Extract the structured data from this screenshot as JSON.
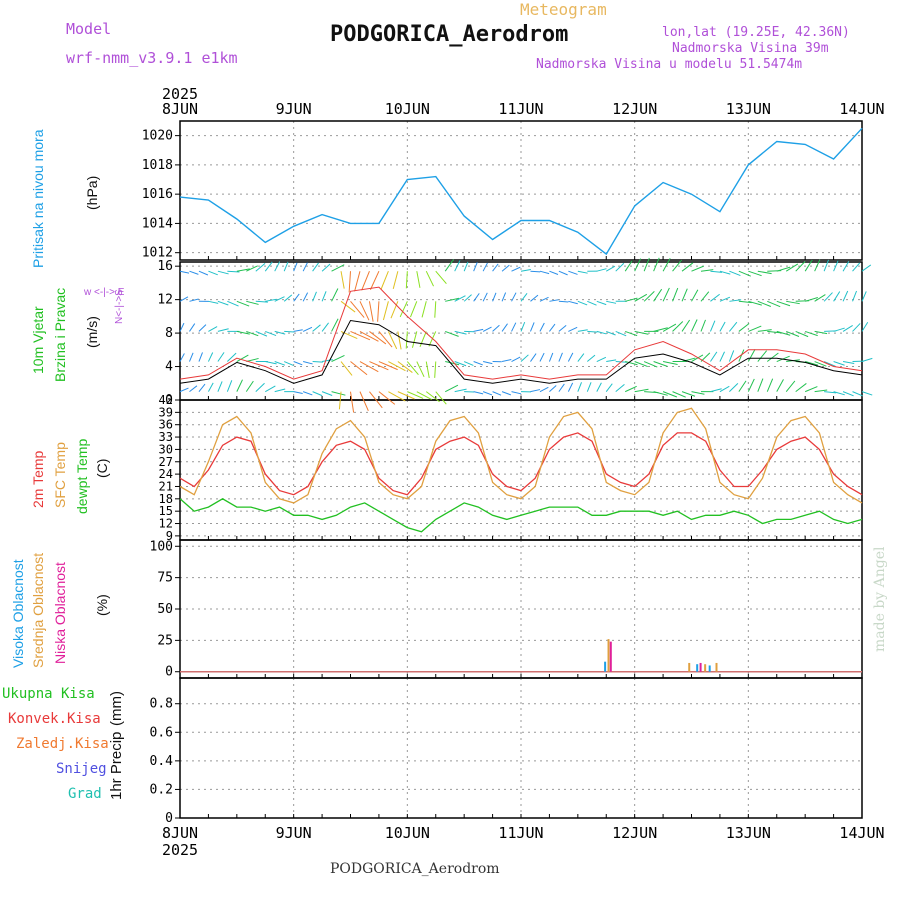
{
  "header": {
    "model_label": "Model",
    "model_name": "wrf-nmm_v3.9.1 e1km",
    "meteogram": "Meteogram",
    "station": "PODGORICA_Aerodrom",
    "lonlat": "lon,lat (19.25E, 42.36N)",
    "altitude": "Nadmorska Visina 39m",
    "model_altitude": "Nadmorska Visina u modelu 51.5474m",
    "footer_station": "PODGORICA_Aerodrom",
    "made_by": "made by Angel"
  },
  "colors": {
    "pressure": "#1ea0e6",
    "temp2m": "#e83a3a",
    "sfc": "#e0a040",
    "dewpt": "#22c022",
    "high_cloud": "#1ea0e6",
    "mid_cloud": "#e0a040",
    "low_cloud": "#e0209a",
    "model_label": "#b050d8",
    "meteogram": "#e8b860",
    "wind_speed": "#000000",
    "gust": "#e83a3a"
  },
  "chart_data": [
    {
      "type": "line",
      "name": "pressure",
      "ylabel_left": "Pritisak na nivou mora",
      "ylabel_unit": "(hPa)",
      "ylim": [
        1011.5,
        1021
      ],
      "yticks": [
        1012,
        1014,
        1016,
        1018,
        1020
      ],
      "x_days": [
        "8JUN",
        "9JUN",
        "10JUN",
        "11JUN",
        "12JUN",
        "13JUN",
        "14JUN"
      ],
      "x_year": "2025",
      "x": [
        0,
        0.25,
        0.5,
        0.75,
        1,
        1.25,
        1.5,
        1.75,
        2,
        2.25,
        2.5,
        2.75,
        3,
        3.25,
        3.5,
        3.75,
        4,
        4.25,
        4.5,
        4.75,
        5,
        5.25,
        5.5,
        5.75,
        6
      ],
      "values": [
        1015.8,
        1015.6,
        1014.3,
        1012.7,
        1013.8,
        1014.6,
        1014.0,
        1014.0,
        1017.0,
        1017.2,
        1014.5,
        1012.9,
        1014.2,
        1014.2,
        1013.4,
        1011.9,
        1015.2,
        1016.8,
        1016.0,
        1014.8,
        1018.0,
        1019.6,
        1019.4,
        1018.4,
        1020.5
      ],
      "grid": true
    },
    {
      "type": "line",
      "name": "wind",
      "ylabel_left_1": "10m Vjetar",
      "ylabel_left_2": "Brzina i Pravac",
      "ylabel_unit": "(m/s)",
      "ylim": [
        0,
        16.5
      ],
      "yticks": [
        0,
        4,
        8,
        12,
        16
      ],
      "compass": "w <-|-> E",
      "compass_ns": "N<-|->S",
      "x": [
        0,
        0.25,
        0.5,
        0.75,
        1,
        1.25,
        1.5,
        1.75,
        2,
        2.25,
        2.5,
        2.75,
        3,
        3.25,
        3.5,
        3.75,
        4,
        4.25,
        4.5,
        4.75,
        5,
        5.25,
        5.5,
        5.75,
        6
      ],
      "speed": [
        2.0,
        2.5,
        4.5,
        3.5,
        2.0,
        3.0,
        9.5,
        9.0,
        7.0,
        6.5,
        2.5,
        2.0,
        2.5,
        2.0,
        2.5,
        2.5,
        5.0,
        5.5,
        4.5,
        3.0,
        5.0,
        5.0,
        4.5,
        3.5,
        3.0
      ],
      "gust": [
        2.5,
        3.0,
        5.0,
        4.0,
        2.5,
        3.5,
        13.0,
        13.5,
        10.0,
        7.0,
        3.0,
        2.5,
        3.0,
        2.5,
        3.0,
        3.0,
        6.0,
        7.0,
        5.5,
        3.5,
        6.0,
        6.0,
        5.5,
        4.0,
        3.5
      ],
      "grid": true
    },
    {
      "type": "line",
      "name": "temperature",
      "ylabel_left_1": "2m Temp",
      "ylabel_left_2": "SFC Temp",
      "ylabel_left_3": "dewpt Temp",
      "ylabel_unit": "(C)",
      "ylim": [
        8,
        42
      ],
      "yticks": [
        9,
        12,
        15,
        18,
        21,
        24,
        27,
        30,
        33,
        36,
        39,
        42
      ],
      "x": [
        0,
        0.125,
        0.25,
        0.375,
        0.5,
        0.625,
        0.75,
        0.875,
        1,
        1.125,
        1.25,
        1.375,
        1.5,
        1.625,
        1.75,
        1.875,
        2,
        2.125,
        2.25,
        2.375,
        2.5,
        2.625,
        2.75,
        2.875,
        3,
        3.125,
        3.25,
        3.375,
        3.5,
        3.625,
        3.75,
        3.875,
        4,
        4.125,
        4.25,
        4.375,
        4.5,
        4.625,
        4.75,
        4.875,
        5,
        5.125,
        5.25,
        5.375,
        5.5,
        5.625,
        5.75,
        5.875,
        6
      ],
      "series": [
        {
          "name": "2m Temp",
          "values": [
            23,
            21,
            25,
            31,
            33,
            32,
            24,
            20,
            19,
            21,
            27,
            31,
            32,
            30,
            23,
            20,
            19,
            23,
            30,
            32,
            33,
            31,
            24,
            21,
            20,
            23,
            30,
            33,
            34,
            32,
            24,
            22,
            21,
            24,
            31,
            34,
            34,
            32,
            25,
            21,
            21,
            25,
            30,
            32,
            33,
            30,
            24,
            21,
            19
          ]
        },
        {
          "name": "SFC Temp",
          "values": [
            21,
            19,
            27,
            36,
            38,
            34,
            22,
            18,
            17,
            19,
            29,
            35,
            37,
            33,
            22,
            19,
            18,
            21,
            32,
            37,
            38,
            34,
            22,
            19,
            18,
            21,
            33,
            38,
            39,
            35,
            22,
            20,
            19,
            22,
            34,
            39,
            40,
            35,
            22,
            19,
            18,
            23,
            33,
            37,
            38,
            34,
            22,
            19,
            17
          ]
        },
        {
          "name": "dewpt Temp",
          "values": [
            18,
            15,
            16,
            18,
            16,
            16,
            15,
            16,
            14,
            14,
            13,
            14,
            16,
            17,
            15,
            13,
            11,
            10,
            13,
            15,
            17,
            16,
            14,
            13,
            14,
            15,
            16,
            16,
            16,
            14,
            14,
            15,
            15,
            15,
            14,
            15,
            13,
            14,
            14,
            15,
            14,
            12,
            13,
            13,
            14,
            15,
            13,
            12,
            13
          ]
        }
      ],
      "grid": true
    },
    {
      "type": "bar",
      "name": "cloud",
      "ylabel_left_1": "Visoka Oblacnost",
      "ylabel_left_2": "Srednja Oblacnost",
      "ylabel_left_3": "Niska Oblacnost",
      "ylabel_unit": "(%)",
      "ylim": [
        -5,
        105
      ],
      "yticks": [
        0,
        25,
        50,
        75,
        100
      ],
      "bars": [
        {
          "x": 3.74,
          "layer": "high",
          "value": 8
        },
        {
          "x": 3.77,
          "layer": "mid",
          "value": 26
        },
        {
          "x": 3.79,
          "layer": "low",
          "value": 24
        },
        {
          "x": 4.48,
          "layer": "mid",
          "value": 7
        },
        {
          "x": 4.55,
          "layer": "high",
          "value": 6
        },
        {
          "x": 4.58,
          "layer": "low",
          "value": 7
        },
        {
          "x": 4.62,
          "layer": "mid",
          "value": 6
        },
        {
          "x": 4.66,
          "layer": "high",
          "value": 5
        },
        {
          "x": 4.72,
          "layer": "mid",
          "value": 7
        }
      ],
      "grid": true
    },
    {
      "type": "bar",
      "name": "precip",
      "ylabel_left": "1hr Precip",
      "ylabel_unit": "(mm)",
      "ylim": [
        0,
        0.98
      ],
      "yticks": [
        0,
        0.2,
        0.4,
        0.6,
        0.8
      ],
      "legend": [
        "Ukupna Kisa",
        "Konvek.Kisa",
        "Zaledj.Kisa",
        "Snijeg",
        "Grad"
      ],
      "legend_colors": [
        "#22c022",
        "#e83a3a",
        "#f07a30",
        "#5050e0",
        "#20c0b0"
      ],
      "values": [],
      "grid": true
    }
  ]
}
